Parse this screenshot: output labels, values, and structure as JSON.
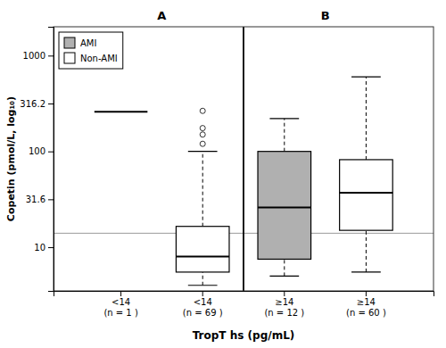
{
  "chart_data": {
    "type": "box",
    "xlabel": "TropT hs (pg/mL)",
    "ylabel": "Copetin (pmol/L, log₁₀)",
    "log": "y",
    "grid": false,
    "legend": "upper left",
    "ylim": [
      3.5,
      2000
    ],
    "yticks": [
      10,
      {
        "value": 31.62,
        "label": "31.6"
      },
      100,
      316.2,
      1000
    ],
    "categories": [
      "<14\n(n = 1 )",
      "<14\n(n = 69 )",
      "≥14\n(n = 12 )",
      "≥14\n(n = 60 )"
    ],
    "panels": [
      "A",
      "B"
    ],
    "boxes": [
      {
        "panel": "A",
        "median": 260
      },
      {
        "panel": "A",
        "color": "white",
        "median": 8.0,
        "q1": 5.5,
        "q3": 16.5,
        "whisker_low": 4.0,
        "whisker_high": 100,
        "outliers": [
          120,
          150,
          175,
          265
        ]
      },
      {
        "panel": "B",
        "color": "#b0b0b0",
        "median": 26,
        "q1": 7.5,
        "q3": 100,
        "whisker_low": 5.0,
        "whisker_high": 220,
        "outliers": []
      },
      {
        "panel": "B",
        "color": "white",
        "median": 37,
        "q1": 15.0,
        "q3": 82,
        "whisker_low": 5.5,
        "whisker_high": 600,
        "outliers": []
      }
    ],
    "reference_line": 14,
    "series": [
      {
        "name": "AMI",
        "color": "#b0b0b0"
      },
      {
        "name": "Non-AMI",
        "color": "white"
      }
    ]
  }
}
